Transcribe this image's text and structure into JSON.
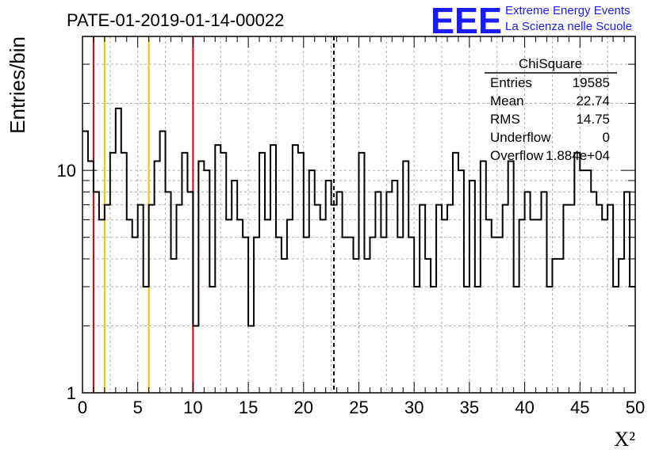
{
  "colors": {
    "red": "#dd0000",
    "orange": "#f0c000",
    "line": "#000000",
    "grid": "#b0b0b0",
    "logo": "#1a1aff"
  },
  "logo": {
    "mark": "EEE",
    "line1": "Extreme Energy Events",
    "line2": "La Scienza nelle Scuole"
  },
  "chart_data": {
    "type": "histogram",
    "title": "PATE-01-2019-01-14-00022",
    "xlabel": "X²",
    "ylabel": "Entries/bin",
    "xlim": [
      0,
      50
    ],
    "ylim": [
      1,
      40
    ],
    "yscale": "log",
    "grid": true,
    "bin_width": 0.5,
    "xticks": [
      0,
      5,
      10,
      15,
      20,
      25,
      30,
      35,
      40,
      45,
      50
    ],
    "yticks": [
      1,
      10
    ],
    "values": [
      15,
      11,
      8,
      6,
      7,
      12,
      19,
      12,
      6,
      5,
      7,
      3,
      7,
      11,
      15,
      8,
      4,
      7,
      12,
      8,
      2,
      11,
      10,
      3,
      13,
      12,
      6,
      9,
      6,
      5,
      2,
      5,
      12,
      6,
      13,
      5,
      4,
      6,
      13,
      12,
      5,
      10,
      7,
      6,
      9,
      7,
      8,
      5,
      5,
      4,
      12,
      4,
      5,
      8,
      5,
      8,
      9,
      5,
      11,
      5,
      3,
      7,
      4,
      3,
      7,
      6,
      7,
      12,
      10,
      3,
      9,
      3,
      11,
      6,
      5,
      5,
      7,
      11,
      3,
      6,
      8,
      6,
      6,
      8,
      3,
      4,
      4,
      7,
      7,
      12,
      10,
      10,
      8,
      7,
      6,
      7,
      3,
      4,
      8,
      3
    ],
    "vlines": [
      {
        "x": 1,
        "color": "red"
      },
      {
        "x": 2,
        "color": "orange"
      },
      {
        "x": 6,
        "color": "orange"
      },
      {
        "x": 10,
        "color": "red"
      },
      {
        "x": 22.74,
        "color": "line",
        "dashed": true
      }
    ],
    "legend": "top-right",
    "stats": {
      "name": "ChiSquare",
      "rows": [
        {
          "label": "Entries",
          "value": "19585"
        },
        {
          "label": "Mean",
          "value": "22.74"
        },
        {
          "label": "RMS",
          "value": "14.75"
        },
        {
          "label": "Underflow",
          "value": "0"
        },
        {
          "label": "Overflow",
          "value": "1.884e+04"
        }
      ]
    }
  }
}
